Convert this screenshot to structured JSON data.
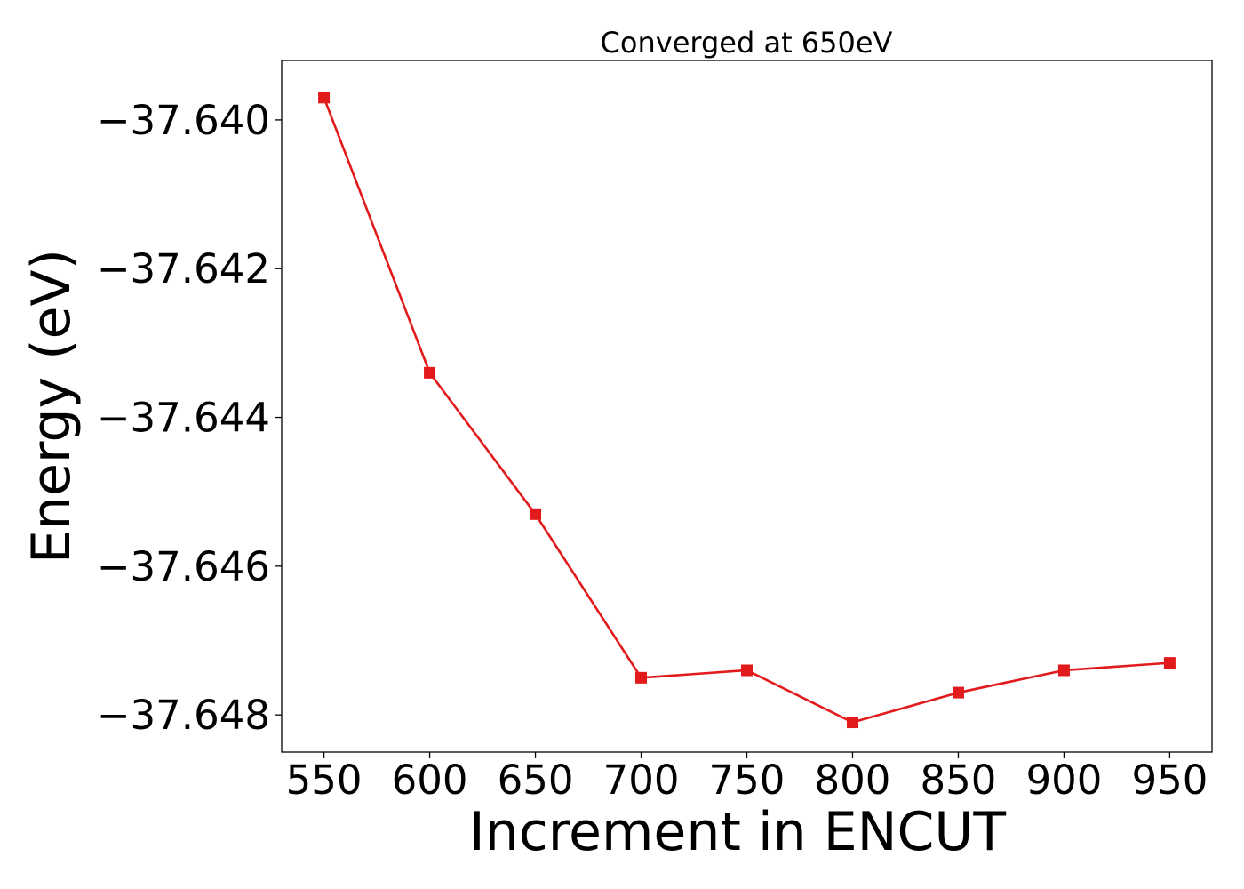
{
  "chart_data": {
    "type": "line",
    "title": "Converged at 650eV",
    "xlabel": "Increment in ENCUT",
    "ylabel": "Energy (eV)",
    "x": [
      550,
      600,
      650,
      700,
      750,
      800,
      850,
      900,
      950
    ],
    "xticks": [
      "550",
      "600",
      "650",
      "700",
      "750",
      "800",
      "850",
      "900",
      "950"
    ],
    "xlim": [
      530,
      970
    ],
    "ylim": [
      -37.6485,
      -37.6392
    ],
    "yticks": [
      -37.64,
      -37.642,
      -37.644,
      -37.646,
      -37.648
    ],
    "ytick_labels": [
      "−37.640",
      "−37.642",
      "−37.644",
      "−37.646",
      "−37.648"
    ],
    "grid": false,
    "series": [
      {
        "color": "#e31a1c",
        "marker": "square",
        "values": [
          -37.6397,
          -37.6434,
          -37.6453,
          -37.6475,
          -37.6474,
          -37.6481,
          -37.6477,
          -37.6474,
          -37.6473
        ]
      }
    ]
  }
}
